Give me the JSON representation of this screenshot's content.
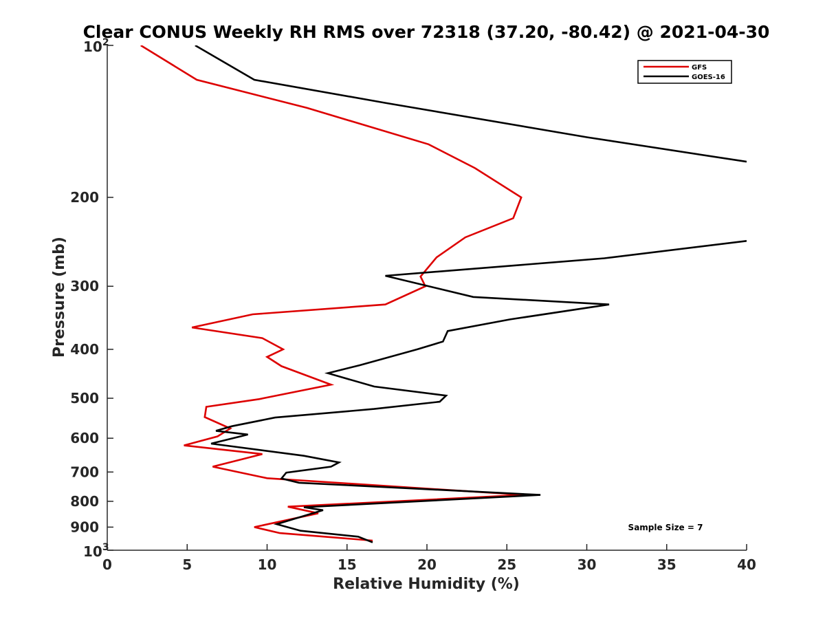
{
  "chart_data": {
    "type": "line",
    "title": "Clear CONUS Weekly RH RMS over 72318 (37.20, -80.42) @ 2021-04-30",
    "xlabel": "Relative Humidity (%)",
    "ylabel": "Pressure (mb)",
    "xlim": [
      0,
      40
    ],
    "ylim": [
      100,
      1000
    ],
    "y_scale": "log",
    "y_reversed": true,
    "x_ticks": [
      "0",
      "5",
      "10",
      "15",
      "20",
      "25",
      "30",
      "35",
      "40"
    ],
    "y_ticks": [
      {
        "value": 100,
        "base": "10",
        "exp": "2"
      },
      {
        "value": 200,
        "label": "200"
      },
      {
        "value": 300,
        "label": "300"
      },
      {
        "value": 400,
        "label": "400"
      },
      {
        "value": 500,
        "label": "500"
      },
      {
        "value": 600,
        "label": "600"
      },
      {
        "value": 700,
        "label": "700"
      },
      {
        "value": 800,
        "label": "800"
      },
      {
        "value": 900,
        "label": "900"
      },
      {
        "value": 1000,
        "base": "10",
        "exp": "3"
      }
    ],
    "grid": false,
    "legend_position": "top-right",
    "series": [
      {
        "name": "GFS",
        "color": "#dd0000",
        "x": [
          2.1,
          5.6,
          12.5,
          20.1,
          23.0,
          25.9,
          25.4,
          22.4,
          20.6,
          19.6,
          19.9,
          17.4,
          9.1,
          5.3,
          9.7,
          11.0,
          10.0,
          10.9,
          14.0,
          9.5,
          6.2,
          6.1,
          7.7,
          6.9,
          4.8,
          9.7,
          8.3,
          6.6,
          10.0,
          26.1,
          11.3,
          13.2,
          9.2,
          10.8,
          16.6
        ],
        "y": [
          100,
          117,
          133,
          157,
          175,
          200,
          220,
          240,
          263,
          287,
          300,
          326,
          341,
          362,
          380,
          400,
          414,
          432,
          470,
          502,
          520,
          545,
          574,
          595,
          620,
          645,
          662,
          683,
          720,
          777,
          820,
          845,
          900,
          925,
          957
        ]
      },
      {
        "name": "GOES-16",
        "color": "#000000",
        "x": [
          5.5,
          9.2,
          17.4,
          30.0,
          40.0,
          null,
          40.0,
          31.1,
          17.4,
          22.9,
          31.4,
          25.2,
          21.3,
          21.0,
          19.4,
          15.8,
          13.8,
          16.7,
          21.2,
          20.8,
          16.7,
          10.5,
          7.8,
          6.8,
          8.8,
          6.5,
          12.3,
          14.5,
          14.0,
          11.2,
          10.9,
          12.0,
          27.1,
          12.3,
          13.5,
          10.6,
          12.1,
          15.7,
          16.6
        ],
        "y": [
          100,
          117,
          130,
          152,
          170,
          null,
          244,
          264,
          286,
          315,
          326,
          349,
          368,
          386,
          400,
          430,
          446,
          474,
          494,
          508,
          525,
          546,
          568,
          580,
          590,
          615,
          650,
          670,
          683,
          702,
          721,
          735,
          777,
          822,
          833,
          888,
          915,
          940,
          965
        ]
      }
    ],
    "annotation": "Sample Size = 7"
  }
}
